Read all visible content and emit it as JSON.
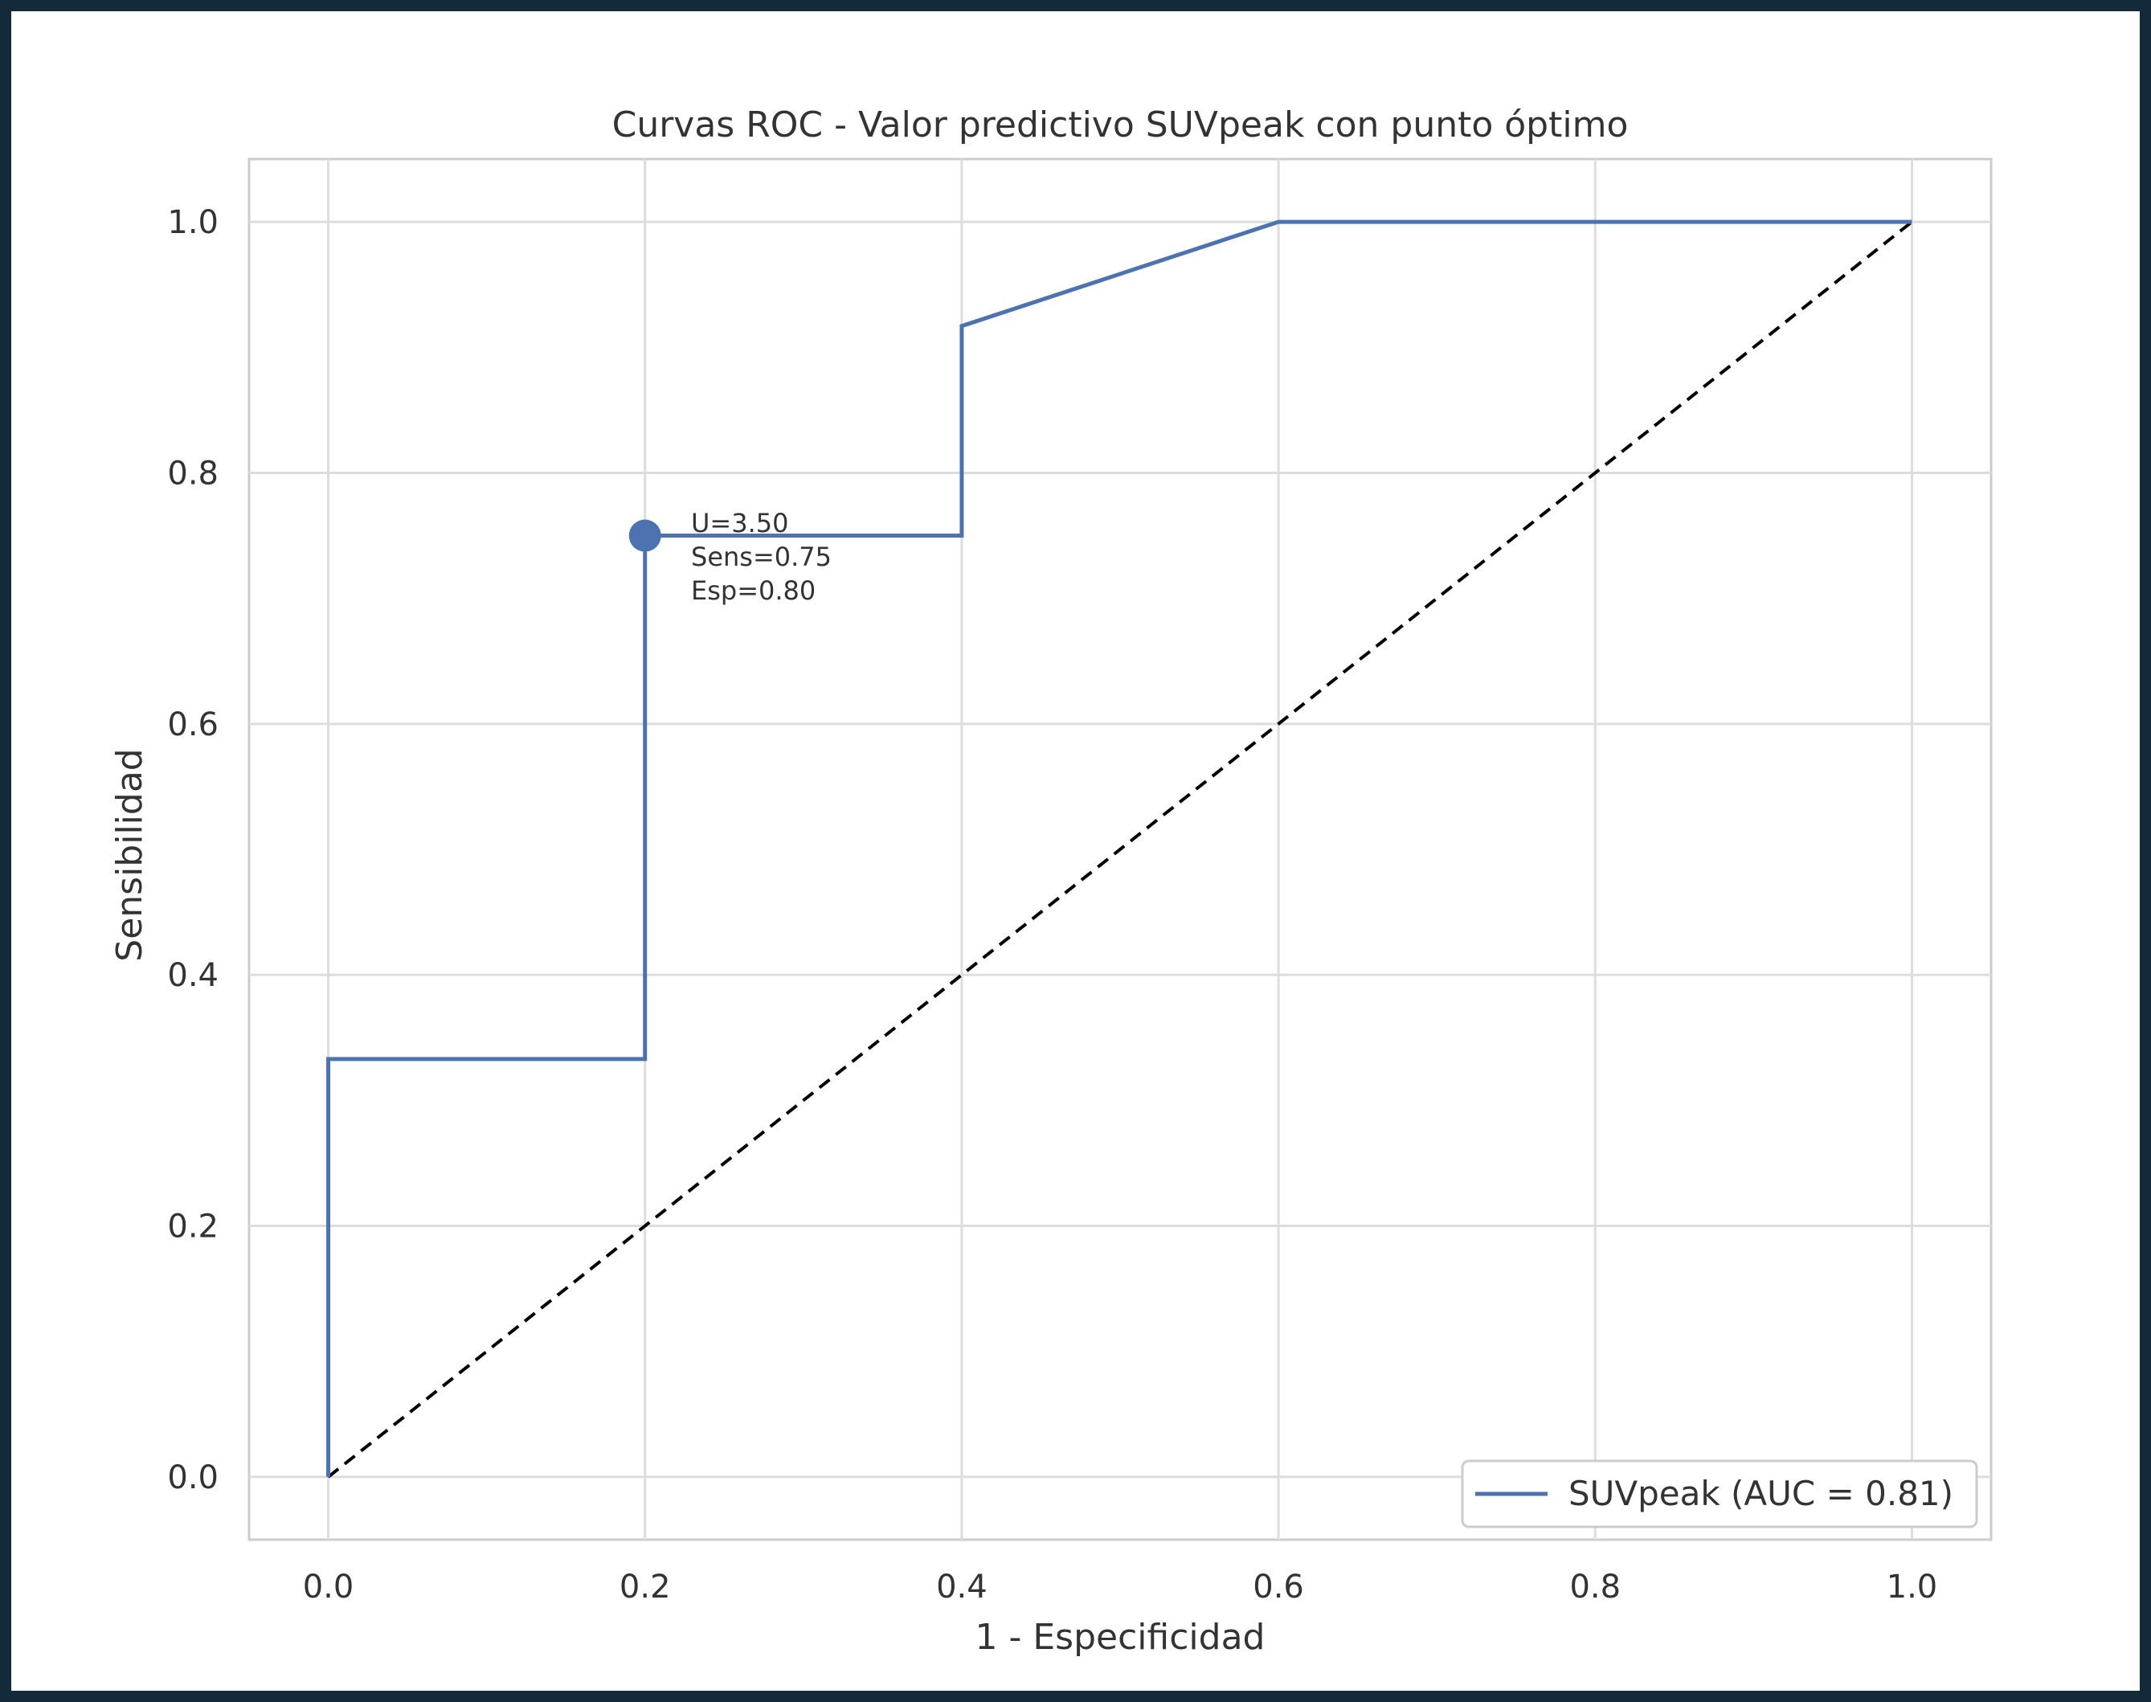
{
  "chart_data": {
    "type": "line",
    "title": "Curvas ROC - Valor predictivo SUVpeak con punto óptimo",
    "xlabel": "1 - Especificidad",
    "ylabel": "Sensibilidad",
    "xlim": [
      -0.05,
      1.05
    ],
    "ylim": [
      -0.05,
      1.05
    ],
    "xticks": [
      0.0,
      0.2,
      0.4,
      0.6,
      0.8,
      1.0
    ],
    "xtick_labels": [
      "0.0",
      "0.2",
      "0.4",
      "0.6",
      "0.8",
      "1.0"
    ],
    "yticks": [
      0.0,
      0.2,
      0.4,
      0.6,
      0.8,
      1.0
    ],
    "ytick_labels": [
      "0.0",
      "0.2",
      "0.4",
      "0.6",
      "0.8",
      "1.0"
    ],
    "grid": true,
    "legend_position": "lower-right",
    "series": [
      {
        "name": "SUVpeak (AUC = 0.81)",
        "color": "#4c72b0",
        "x": [
          0.0,
          0.0,
          0.2,
          0.2,
          0.4,
          0.4,
          0.6,
          1.0
        ],
        "y": [
          0.0,
          0.333,
          0.333,
          0.75,
          0.75,
          0.917,
          1.0,
          1.0
        ]
      }
    ],
    "reference_line": {
      "style": "dashed",
      "color": "#000000",
      "x": [
        0.0,
        1.0
      ],
      "y": [
        0.0,
        1.0
      ]
    },
    "optimal_point": {
      "x": 0.2,
      "y": 0.75,
      "color": "#4c72b0",
      "annotation": [
        "U=3.50",
        "Sens=0.75",
        "Esp=0.80"
      ]
    }
  }
}
